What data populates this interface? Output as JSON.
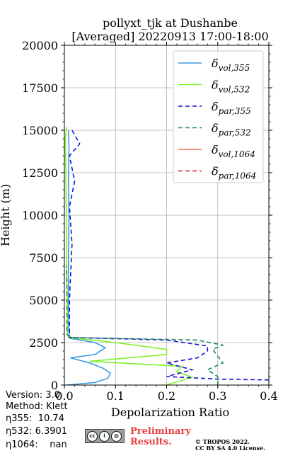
{
  "chart_data": {
    "type": "line",
    "title_line1": "pollyxt_tjk at Dushanbe",
    "title_line2": "[Averaged] 20220913 17:00-18:00",
    "xlabel": "Depolarization Ratio",
    "ylabel": "Height (m)",
    "xlim": [
      0.0,
      0.4
    ],
    "ylim": [
      0,
      20000
    ],
    "xticks": [
      "0.0",
      "0.1",
      "0.2",
      "0.3",
      "0.4"
    ],
    "yticks": [
      "0",
      "2500",
      "5000",
      "7500",
      "10000",
      "12500",
      "15000",
      "17500",
      "20000"
    ],
    "grid": true,
    "legend_position": "top-right",
    "series": [
      {
        "name": "δvol,355",
        "color": "#3a9ee6",
        "dash": "solid",
        "points": [
          [
            0.005,
            0
          ],
          [
            0.06,
            150
          ],
          [
            0.085,
            400
          ],
          [
            0.09,
            700
          ],
          [
            0.075,
            1000
          ],
          [
            0.05,
            1300
          ],
          [
            0.012,
            1600
          ],
          [
            0.06,
            1800
          ],
          [
            0.08,
            2200
          ],
          [
            0.06,
            2500
          ],
          [
            0.012,
            2750
          ],
          [
            0.009,
            3000
          ],
          [
            0.008,
            4000
          ],
          [
            0.008,
            6000
          ],
          [
            0.008,
            8000
          ],
          [
            0.009,
            10000
          ],
          [
            0.008,
            12000
          ],
          [
            0.009,
            14000
          ],
          [
            0.008,
            15000
          ]
        ]
      },
      {
        "name": "δvol,532",
        "color": "#7ff22a",
        "dash": "solid",
        "points": [
          [
            0.2,
            0
          ],
          [
            0.21,
            100
          ],
          [
            0.25,
            450
          ],
          [
            0.22,
            800
          ],
          [
            0.23,
            1100
          ],
          [
            0.05,
            1400
          ],
          [
            0.2,
            1800
          ],
          [
            0.2,
            2100
          ],
          [
            0.1,
            2500
          ],
          [
            0.008,
            2800
          ],
          [
            0.006,
            3000
          ],
          [
            0.006,
            4000
          ],
          [
            0.005,
            6000
          ],
          [
            0.004,
            9000
          ],
          [
            0.003,
            12000
          ],
          [
            0.002,
            14500
          ],
          [
            0.004,
            15200
          ]
        ]
      },
      {
        "name": "δpar,355",
        "color": "#1313d8",
        "dash": "6,4",
        "points": [
          [
            0.4,
            300
          ],
          [
            0.3,
            350
          ],
          [
            0.2,
            500
          ],
          [
            0.25,
            900
          ],
          [
            0.2,
            1300
          ],
          [
            0.26,
            1600
          ],
          [
            0.28,
            2000
          ],
          [
            0.28,
            2300
          ],
          [
            0.2,
            2650
          ],
          [
            0.01,
            2800
          ],
          [
            0.01,
            3500
          ],
          [
            0.01,
            5000
          ],
          [
            0.015,
            8300
          ],
          [
            0.01,
            10500
          ],
          [
            0.02,
            12000
          ],
          [
            0.01,
            13500
          ],
          [
            0.03,
            14200
          ],
          [
            0.015,
            15000
          ]
        ]
      },
      {
        "name": "δpar,532",
        "color": "#1d8a58",
        "dash": "6,4",
        "points": [
          [
            0.3,
            0
          ],
          [
            0.3,
            100
          ],
          [
            0.3,
            500
          ],
          [
            0.28,
            900
          ],
          [
            0.31,
            1300
          ],
          [
            0.3,
            1700
          ],
          [
            0.29,
            2100
          ],
          [
            0.31,
            2350
          ],
          [
            0.26,
            2650
          ],
          [
            0.012,
            2800
          ],
          [
            0.005,
            3000
          ],
          [
            0.005,
            4500
          ],
          [
            0.005,
            6000
          ],
          [
            0.004,
            7000
          ]
        ]
      },
      {
        "name": "δvol,1064",
        "color": "#f0755a",
        "dash": "solid",
        "points": []
      },
      {
        "name": "δpar,1064",
        "color": "#d42020",
        "dash": "6,4",
        "points": []
      }
    ]
  },
  "meta": {
    "version": "Version: 3.0",
    "method": "Method: Klett",
    "eta355": "η355:  10.74",
    "eta532": "η532: 6.3901",
    "eta1064": "η1064:    nan"
  },
  "footer": {
    "prelim_line1": "Preliminary",
    "prelim_line2": "Results.",
    "copyright_line1": "© TROPOS 2022.",
    "copyright_line2": "CC BY SA 4.0 License.",
    "badge_text": "cc"
  }
}
